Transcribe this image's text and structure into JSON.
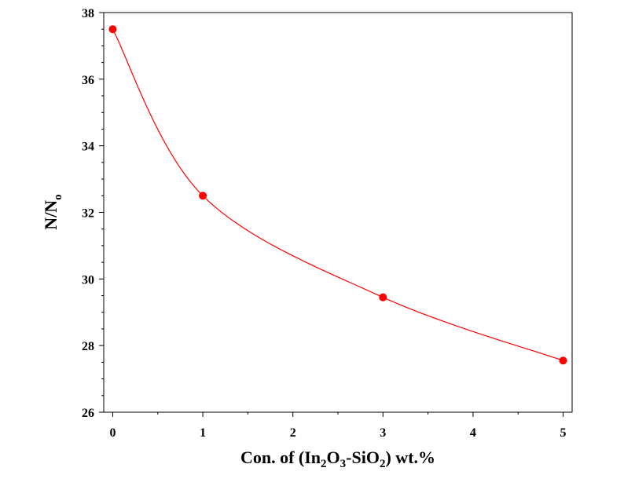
{
  "chart_data": {
    "type": "line",
    "x": [
      0,
      1,
      3,
      5
    ],
    "values": [
      37.5,
      32.5,
      29.45,
      27.55
    ],
    "xlabel": {
      "before": "Con. of (In",
      "sub1": "2",
      "mid1": "O",
      "sub2": "3",
      "mid2": "-SiO",
      "sub3": "2",
      "after": ") wt.%"
    },
    "ylabel": {
      "main": "N/N",
      "sub": "o"
    },
    "xlim": [
      -0.1,
      5.1
    ],
    "ylim": [
      26,
      38
    ],
    "x_ticks": [
      "0",
      "1",
      "2",
      "3",
      "4",
      "5"
    ],
    "y_ticks": [
      "26",
      "28",
      "30",
      "32",
      "34",
      "36",
      "38"
    ],
    "grid": false,
    "line_color": "#ff0000",
    "marker_color": "#ff0000",
    "smooth": true
  }
}
